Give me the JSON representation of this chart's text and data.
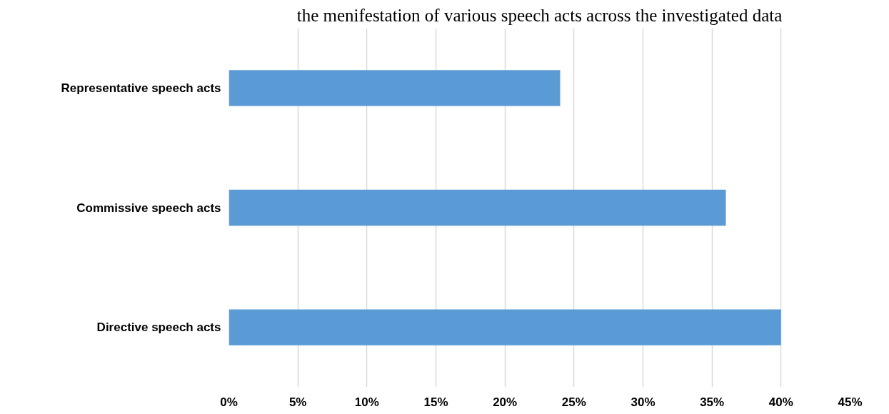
{
  "chart_data": {
    "type": "bar",
    "orientation": "horizontal",
    "title": "the menifestation of various speech acts across the investigated data",
    "categories": [
      "Representative speech acts",
      "Commissive speech acts",
      "Directive speech acts"
    ],
    "values": [
      24,
      36,
      40
    ],
    "color": "#5b9bd5",
    "xlim": [
      0,
      45
    ],
    "xticks": [
      {
        "value": 0,
        "label": "0%"
      },
      {
        "value": 5,
        "label": "5%"
      },
      {
        "value": 10,
        "label": "10%"
      },
      {
        "value": 15,
        "label": "15%"
      },
      {
        "value": 20,
        "label": "20%"
      },
      {
        "value": 25,
        "label": "25%"
      },
      {
        "value": 30,
        "label": "30%"
      },
      {
        "value": 35,
        "label": "35%"
      },
      {
        "value": 40,
        "label": "40%"
      },
      {
        "value": 45,
        "label": "45%"
      }
    ],
    "grid": "x"
  }
}
